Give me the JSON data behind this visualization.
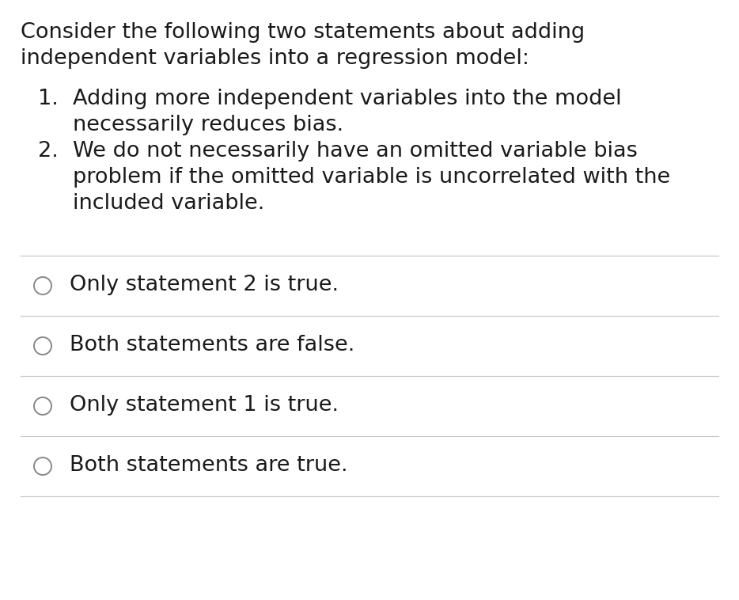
{
  "background_color": "#ffffff",
  "text_color": "#1a1a1a",
  "line_color": "#c8c8c8",
  "prompt_lines": [
    "Consider the following two statements about adding",
    "independent variables into a regression model:"
  ],
  "numbered_items": [
    {
      "number": "1.",
      "lines": [
        "Adding more independent variables into the model",
        "necessarily reduces bias."
      ]
    },
    {
      "number": "2.",
      "lines": [
        "We do not necessarily have an omitted variable bias",
        "problem if the omitted variable is uncorrelated with the",
        "included variable."
      ]
    }
  ],
  "choices": [
    "Only statement 2 is true.",
    "Both statements are false.",
    "Only statement 1 is true.",
    "Both statements are true."
  ],
  "font_size": 19.5,
  "font_family": "DejaVu Sans"
}
